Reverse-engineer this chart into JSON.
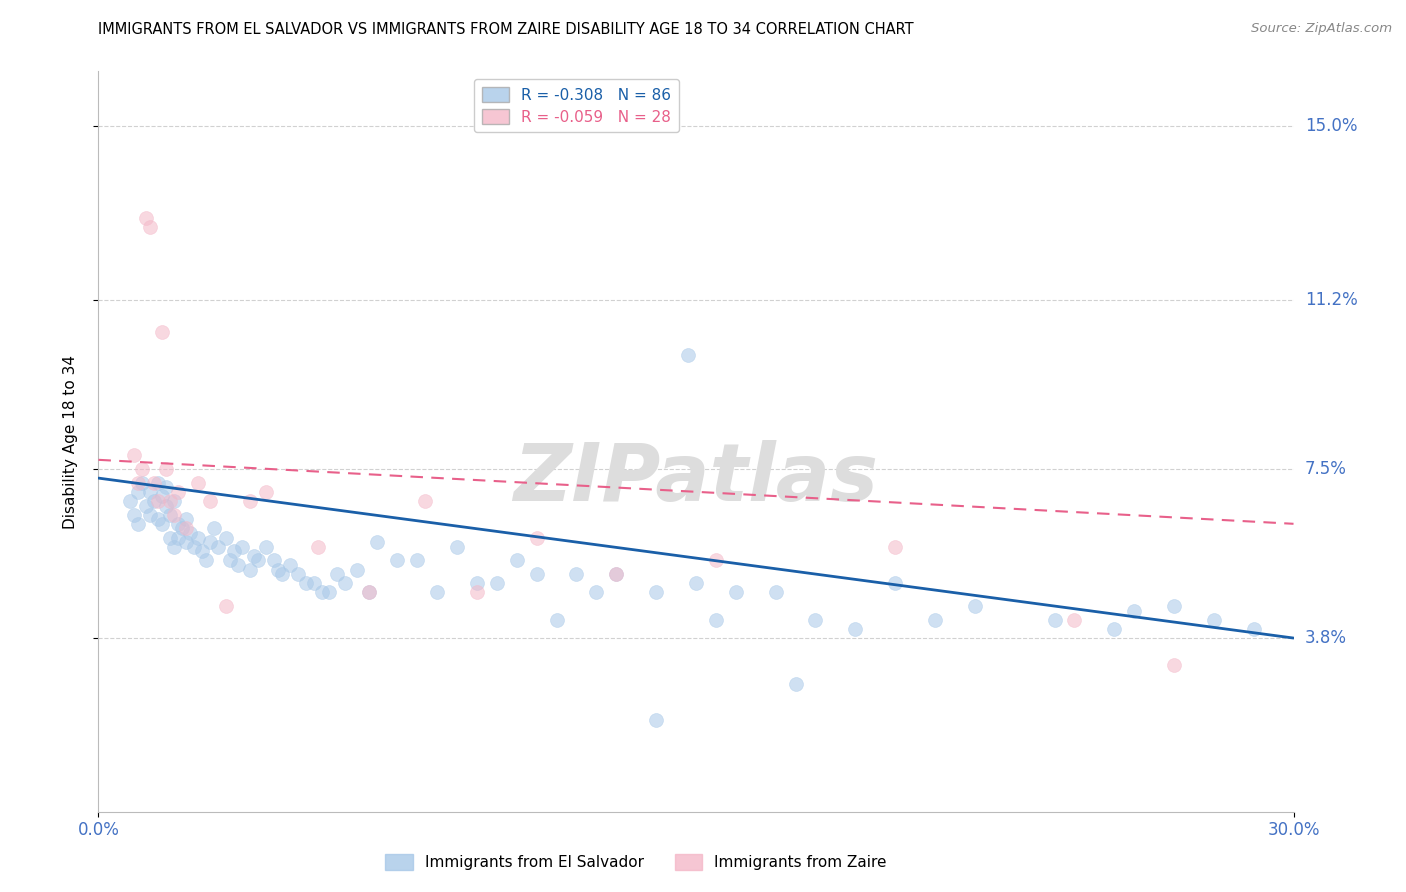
{
  "title": "IMMIGRANTS FROM EL SALVADOR VS IMMIGRANTS FROM ZAIRE DISABILITY AGE 18 TO 34 CORRELATION CHART",
  "source": "Source: ZipAtlas.com",
  "ylabel_label": "Disability Age 18 to 34",
  "ylabel_ticks": [
    "3.8%",
    "7.5%",
    "11.2%",
    "15.0%"
  ],
  "ylabel_tick_vals": [
    0.038,
    0.075,
    0.112,
    0.15
  ],
  "xlabel_ticks": [
    "0.0%",
    "30.0%"
  ],
  "xlim": [
    0.0,
    0.3
  ],
  "ylim": [
    0.0,
    0.162
  ],
  "legend_blue_r": "R = -0.308",
  "legend_blue_n": "N = 86",
  "legend_pink_r": "R = -0.059",
  "legend_pink_n": "N = 28",
  "legend_blue_label": "Immigrants from El Salvador",
  "legend_pink_label": "Immigrants from Zaire",
  "color_blue": "#a8c8e8",
  "color_pink": "#f4b8c8",
  "color_blue_line": "#1a5fa8",
  "color_pink_line": "#e8608a",
  "color_axis_ticks": "#4472c4",
  "color_grid": "#cccccc",
  "watermark": "ZIPatlas",
  "blue_scatter_x": [
    0.008,
    0.009,
    0.01,
    0.01,
    0.011,
    0.012,
    0.013,
    0.013,
    0.014,
    0.015,
    0.015,
    0.016,
    0.016,
    0.017,
    0.017,
    0.018,
    0.018,
    0.019,
    0.019,
    0.02,
    0.02,
    0.021,
    0.022,
    0.022,
    0.023,
    0.024,
    0.025,
    0.026,
    0.027,
    0.028,
    0.029,
    0.03,
    0.032,
    0.033,
    0.034,
    0.035,
    0.036,
    0.038,
    0.039,
    0.04,
    0.042,
    0.044,
    0.045,
    0.046,
    0.048,
    0.05,
    0.052,
    0.054,
    0.056,
    0.058,
    0.06,
    0.062,
    0.065,
    0.068,
    0.07,
    0.075,
    0.08,
    0.085,
    0.09,
    0.095,
    0.1,
    0.105,
    0.11,
    0.115,
    0.12,
    0.125,
    0.13,
    0.14,
    0.15,
    0.155,
    0.16,
    0.17,
    0.18,
    0.2,
    0.22,
    0.24,
    0.26,
    0.27,
    0.28,
    0.29,
    0.148,
    0.19,
    0.21,
    0.255,
    0.14,
    0.175
  ],
  "blue_scatter_y": [
    0.068,
    0.065,
    0.07,
    0.063,
    0.072,
    0.067,
    0.065,
    0.07,
    0.068,
    0.064,
    0.072,
    0.063,
    0.069,
    0.067,
    0.071,
    0.065,
    0.06,
    0.068,
    0.058,
    0.063,
    0.06,
    0.062,
    0.059,
    0.064,
    0.061,
    0.058,
    0.06,
    0.057,
    0.055,
    0.059,
    0.062,
    0.058,
    0.06,
    0.055,
    0.057,
    0.054,
    0.058,
    0.053,
    0.056,
    0.055,
    0.058,
    0.055,
    0.053,
    0.052,
    0.054,
    0.052,
    0.05,
    0.05,
    0.048,
    0.048,
    0.052,
    0.05,
    0.053,
    0.048,
    0.059,
    0.055,
    0.055,
    0.048,
    0.058,
    0.05,
    0.05,
    0.055,
    0.052,
    0.042,
    0.052,
    0.048,
    0.052,
    0.048,
    0.05,
    0.042,
    0.048,
    0.048,
    0.042,
    0.05,
    0.045,
    0.042,
    0.044,
    0.045,
    0.042,
    0.04,
    0.1,
    0.04,
    0.042,
    0.04,
    0.02,
    0.028
  ],
  "pink_scatter_x": [
    0.009,
    0.01,
    0.011,
    0.012,
    0.013,
    0.014,
    0.015,
    0.016,
    0.017,
    0.018,
    0.019,
    0.02,
    0.022,
    0.025,
    0.028,
    0.032,
    0.038,
    0.042,
    0.055,
    0.068,
    0.082,
    0.095,
    0.11,
    0.13,
    0.155,
    0.2,
    0.245,
    0.27
  ],
  "pink_scatter_y": [
    0.078,
    0.072,
    0.075,
    0.13,
    0.128,
    0.072,
    0.068,
    0.105,
    0.075,
    0.068,
    0.065,
    0.07,
    0.062,
    0.072,
    0.068,
    0.045,
    0.068,
    0.07,
    0.058,
    0.048,
    0.068,
    0.048,
    0.06,
    0.052,
    0.055,
    0.058,
    0.042,
    0.032
  ],
  "blue_line_x": [
    0.0,
    0.3
  ],
  "blue_line_y": [
    0.073,
    0.038
  ],
  "pink_line_x": [
    0.0,
    0.3
  ],
  "pink_line_y": [
    0.077,
    0.063
  ],
  "background_color": "#ffffff"
}
